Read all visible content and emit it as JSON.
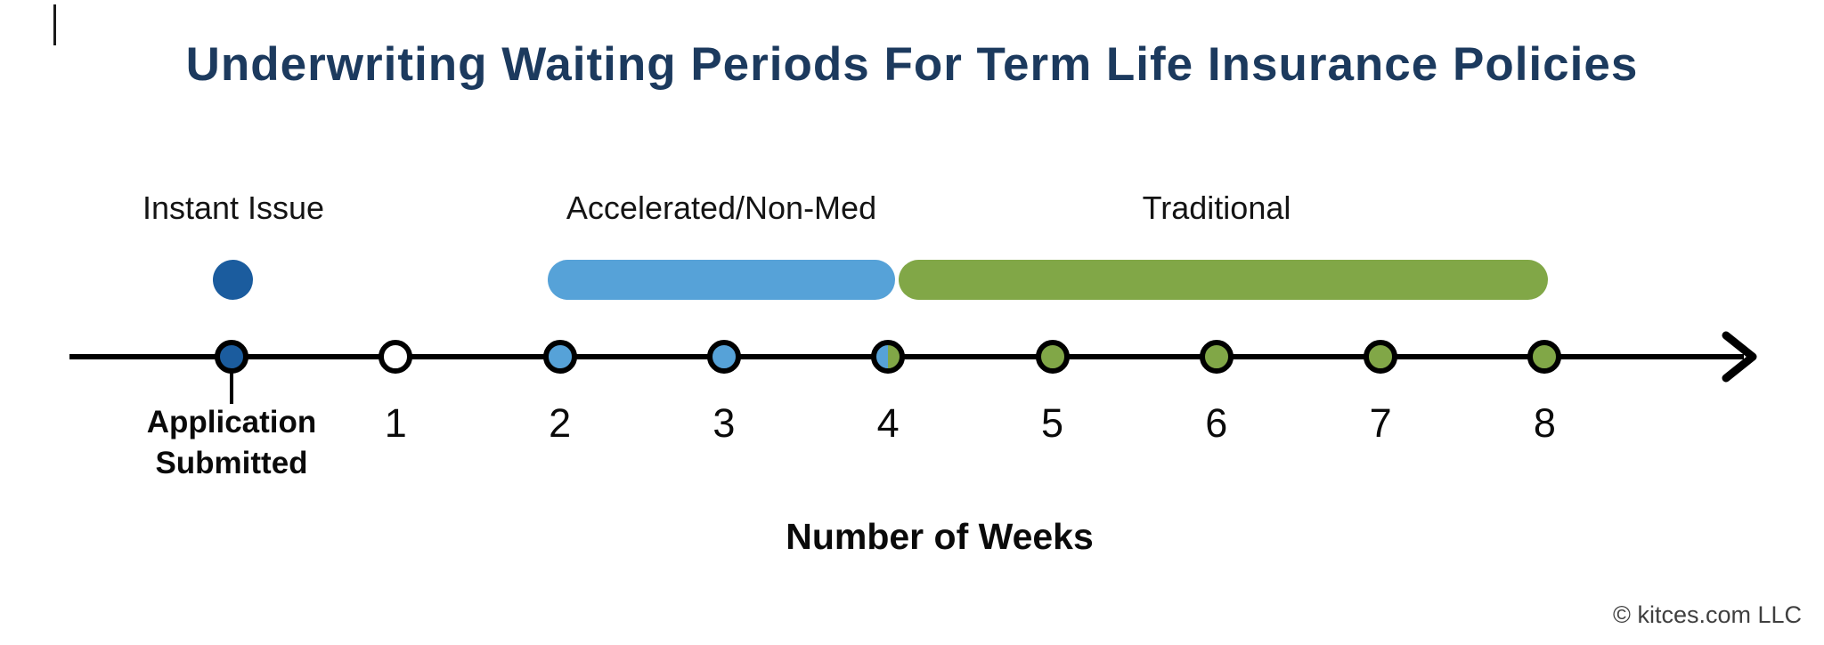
{
  "title": "Underwriting Waiting Periods For Term Life Insurance Policies",
  "labels": {
    "application": "Application\nSubmitted"
  },
  "footer": {
    "copyright": "© kitces.com LLC"
  },
  "colors": {
    "title_navy": "#1c3a5e",
    "dark_blue": "#1b5c9e",
    "light_blue": "#56a2d8",
    "green": "#81a747",
    "white": "#ffffff",
    "axis_black": "#000000",
    "copyright_gray": "#3f3f3f"
  },
  "chart_data": {
    "type": "timeline",
    "title": "Underwriting Waiting Periods For Term Life Insurance Policies",
    "xlabel": "Number of Weeks",
    "axis_range_weeks": [
      0,
      8
    ],
    "x_ticks": [
      "Application Submitted",
      "1",
      "2",
      "3",
      "4",
      "5",
      "6",
      "7",
      "8"
    ],
    "segments": [
      {
        "label": "Instant Issue",
        "start_week": 0,
        "end_week": 0,
        "color": "#1b5c9e"
      },
      {
        "label": "Accelerated/Non-Med",
        "start_week": 2,
        "end_week": 4,
        "color": "#56a2d8"
      },
      {
        "label": "Traditional",
        "start_week": 4,
        "end_week": 8,
        "color": "#81a747"
      }
    ],
    "points": [
      {
        "week": 0,
        "label": "Application Submitted",
        "fill": "dark_blue"
      },
      {
        "week": 1,
        "label": "1",
        "fill": "white"
      },
      {
        "week": 2,
        "label": "2",
        "fill": "light_blue"
      },
      {
        "week": 3,
        "label": "3",
        "fill": "light_blue"
      },
      {
        "week": 4,
        "label": "4",
        "fill": "split_blue_green"
      },
      {
        "week": 5,
        "label": "5",
        "fill": "green"
      },
      {
        "week": 6,
        "label": "6",
        "fill": "green"
      },
      {
        "week": 7,
        "label": "7",
        "fill": "green"
      },
      {
        "week": 8,
        "label": "8",
        "fill": "green"
      }
    ]
  }
}
